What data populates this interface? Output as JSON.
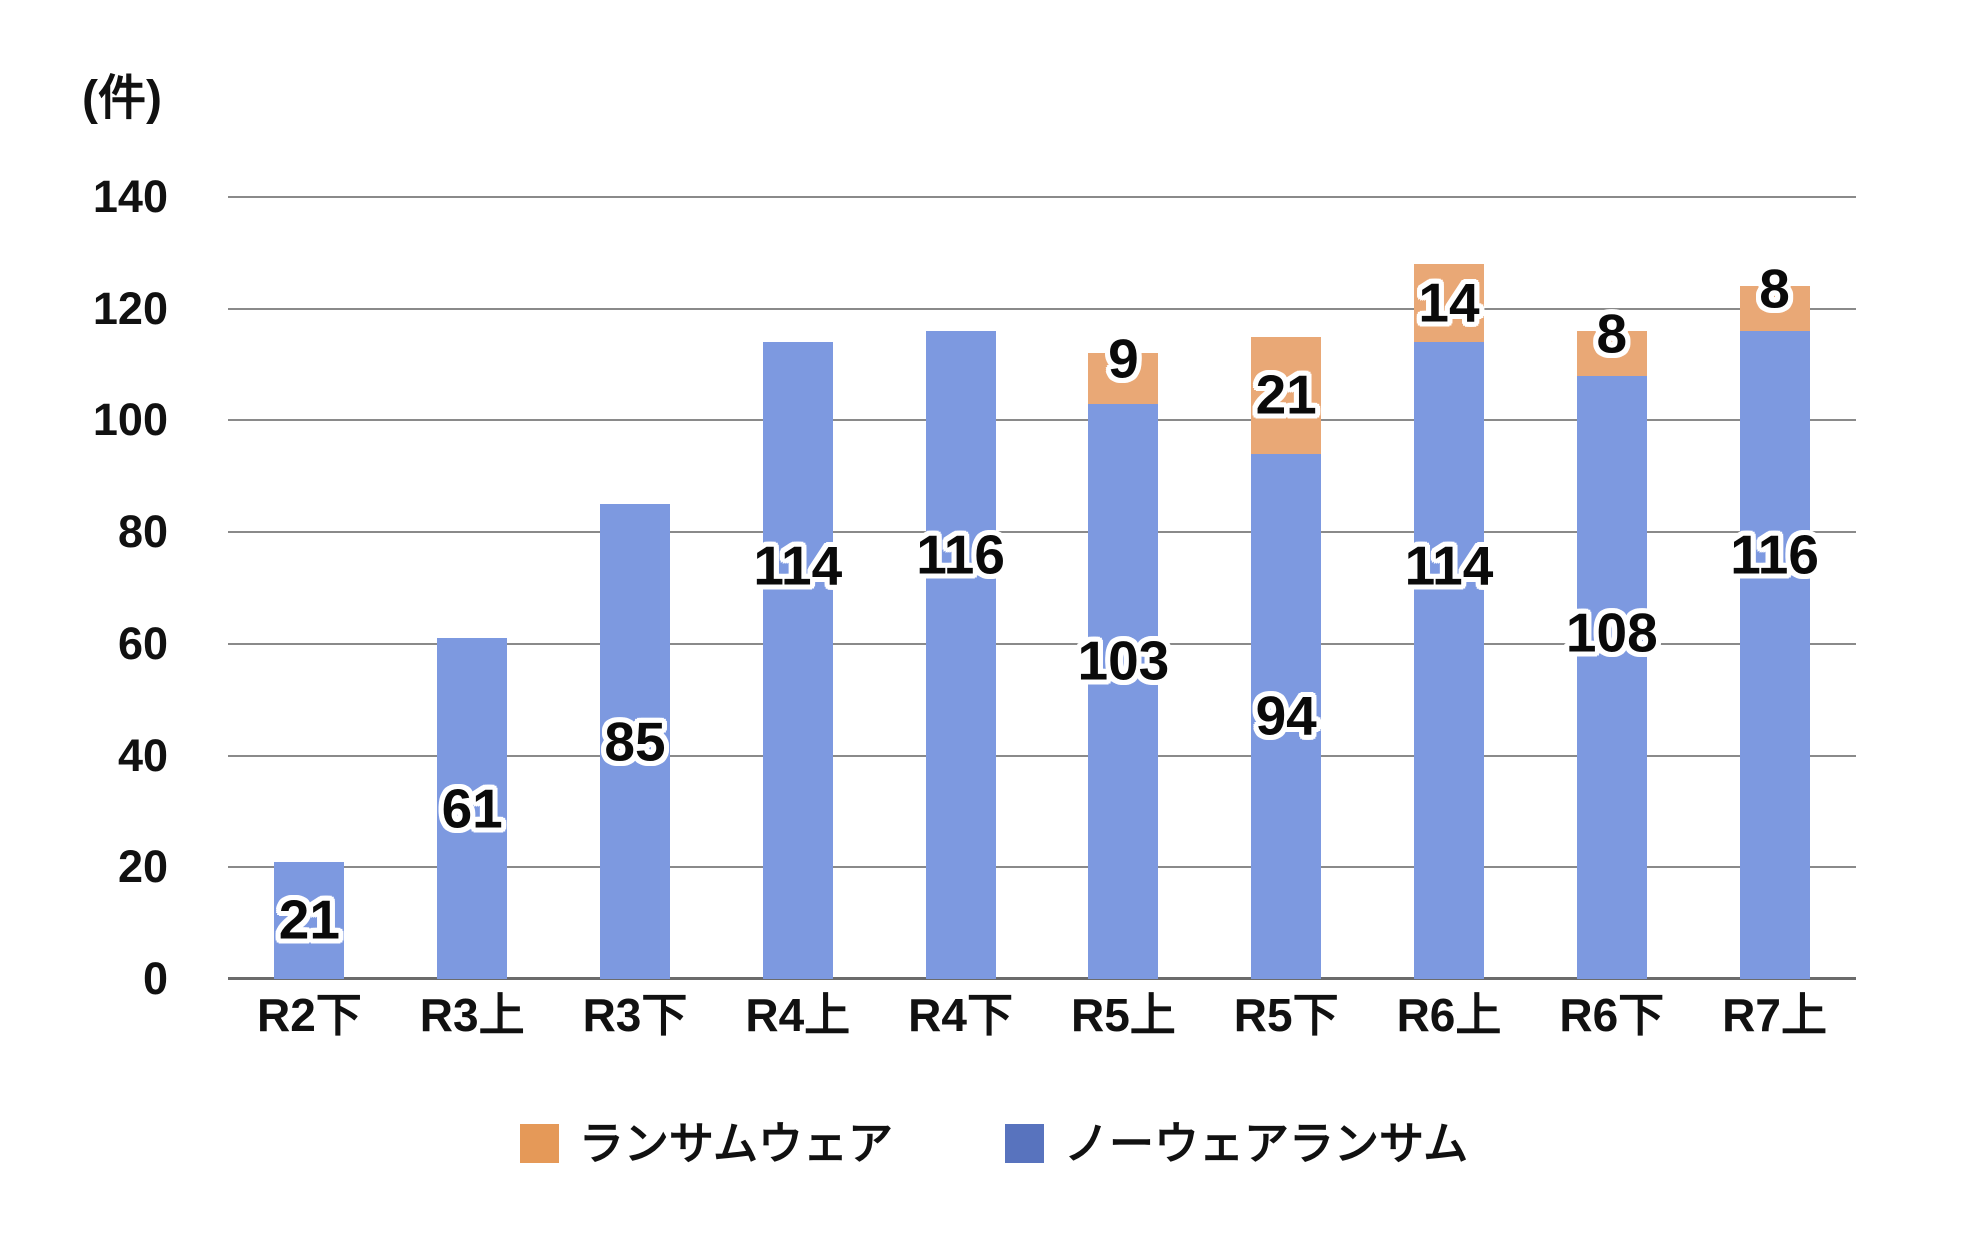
{
  "chart_data": {
    "type": "bar",
    "stacked": true,
    "title": "",
    "unit_label": "(件)",
    "categories": [
      "R2下",
      "R3上",
      "R3下",
      "R4上",
      "R4下",
      "R5上",
      "R5下",
      "R6上",
      "R6下",
      "R7上"
    ],
    "series": [
      {
        "name": "ノーウェアランサム",
        "bar_color": "#7D99E0",
        "legend_color": "#5873BE",
        "values": [
          21,
          61,
          85,
          114,
          116,
          103,
          94,
          114,
          108,
          116
        ],
        "labels": [
          "21",
          "61",
          "85",
          "114",
          "116",
          "103",
          "94",
          "114",
          "108",
          "116"
        ]
      },
      {
        "name": "ランサムウェア",
        "bar_color": "#E9A876",
        "legend_color": "#E59958",
        "values": [
          0,
          0,
          0,
          0,
          0,
          9,
          21,
          14,
          8,
          8
        ],
        "labels": [
          "",
          "",
          "",
          "",
          "",
          "9",
          "21",
          "14",
          "8",
          "8"
        ]
      }
    ],
    "totals": [
      21,
      61,
      85,
      114,
      116,
      112,
      115,
      128,
      116,
      124
    ],
    "y_axis": {
      "min": 0,
      "max": 140,
      "step": 20,
      "tick_labels": [
        "0",
        "20",
        "40",
        "60",
        "80",
        "100",
        "120",
        "140"
      ]
    },
    "grid": true,
    "gridline_color": "#8A8A8A",
    "axis_line_color": "#6B6B6B",
    "legend_position": "bottom",
    "legend": [
      {
        "label": "ランサムウェア",
        "color": "#E59958"
      },
      {
        "label": "ノーウェアランサム",
        "color": "#5873BE"
      }
    ]
  }
}
